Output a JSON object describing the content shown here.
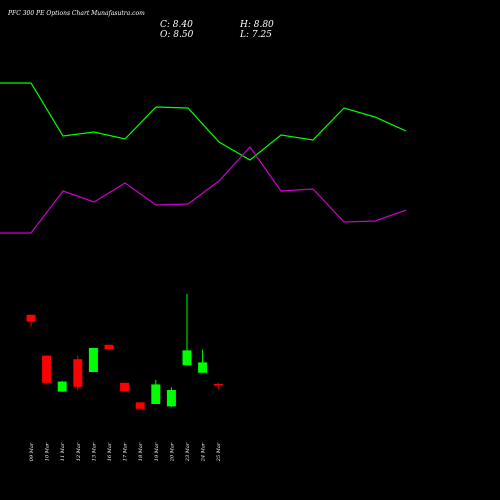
{
  "header": {
    "title": "PFC 300 PE Options Chart Munafasutra.com",
    "close": "C: 8.40",
    "open": "O: 8.50",
    "high": "H: 8.80",
    "low": "L: 7.25"
  },
  "chart_data": {
    "type": "candlestick",
    "title": "PFC 300 PE Options Chart Munafasutra.com",
    "categories": [
      "09 Mar",
      "10 Mar",
      "11 Mar",
      "12 Mar",
      "13 Mar",
      "16 Mar",
      "17 Mar",
      "18 Mar",
      "19 Mar",
      "20 Mar",
      "23 Mar",
      "24 Mar",
      "25 Mar"
    ],
    "candles": [
      {
        "open": 25.8,
        "high": 25.8,
        "low": 22.9,
        "close": 24.1,
        "color": "red"
      },
      {
        "open": 15.6,
        "high": 15.6,
        "low": 8.4,
        "close": 8.8,
        "color": "red"
      },
      {
        "open": 9.1,
        "high": 9.3,
        "low": 6.5,
        "close": 6.6,
        "color": "green"
      },
      {
        "open": 14.7,
        "high": 15.6,
        "low": 6.9,
        "close": 7.8,
        "color": "red"
      },
      {
        "open": 11.5,
        "high": 17.5,
        "low": 11.5,
        "close": 17.5,
        "color": "green"
      },
      {
        "open": 18.3,
        "high": 18.3,
        "low": 17.2,
        "close": 17.2,
        "color": "red"
      },
      {
        "open": 8.8,
        "high": 8.8,
        "low": 6.7,
        "close": 6.7,
        "color": "red"
      },
      {
        "open": 3.9,
        "high": 3.9,
        "low": 2.3,
        "close": 2.3,
        "color": "red"
      },
      {
        "open": 3.5,
        "high": 9.5,
        "low": 3.5,
        "close": 8.4,
        "color": "green"
      },
      {
        "open": 2.9,
        "high": 7.7,
        "low": 2.7,
        "close": 7.0,
        "color": "green"
      },
      {
        "open": 13.2,
        "high": 31.0,
        "low": 13.2,
        "close": 16.9,
        "color": "green"
      },
      {
        "open": 11.3,
        "high": 17.1,
        "low": 11.3,
        "close": 13.9,
        "color": "green"
      },
      {
        "open": 8.5,
        "high": 8.8,
        "low": 7.25,
        "close": 8.4,
        "color": "red"
      }
    ],
    "upper_lines": [
      {
        "color": "#00ff00",
        "values": [
          83,
          83,
          136,
          132,
          139,
          107,
          108,
          142,
          160,
          135,
          140,
          108,
          117
        ]
      },
      {
        "color": "#cc00cc",
        "values": [
          233,
          233,
          191,
          202,
          183,
          205,
          204,
          181,
          147,
          191,
          189,
          222,
          221
        ]
      }
    ],
    "upper_line_tail": {
      "green": 131,
      "magenta": 210
    },
    "ylim": [
      0,
      40
    ]
  },
  "colors": {
    "background": "#000000",
    "up": "#00ff00",
    "down": "#ff0000",
    "green_line": "#00ff00",
    "magenta_line": "#cc00cc",
    "text": "#ffffff"
  }
}
